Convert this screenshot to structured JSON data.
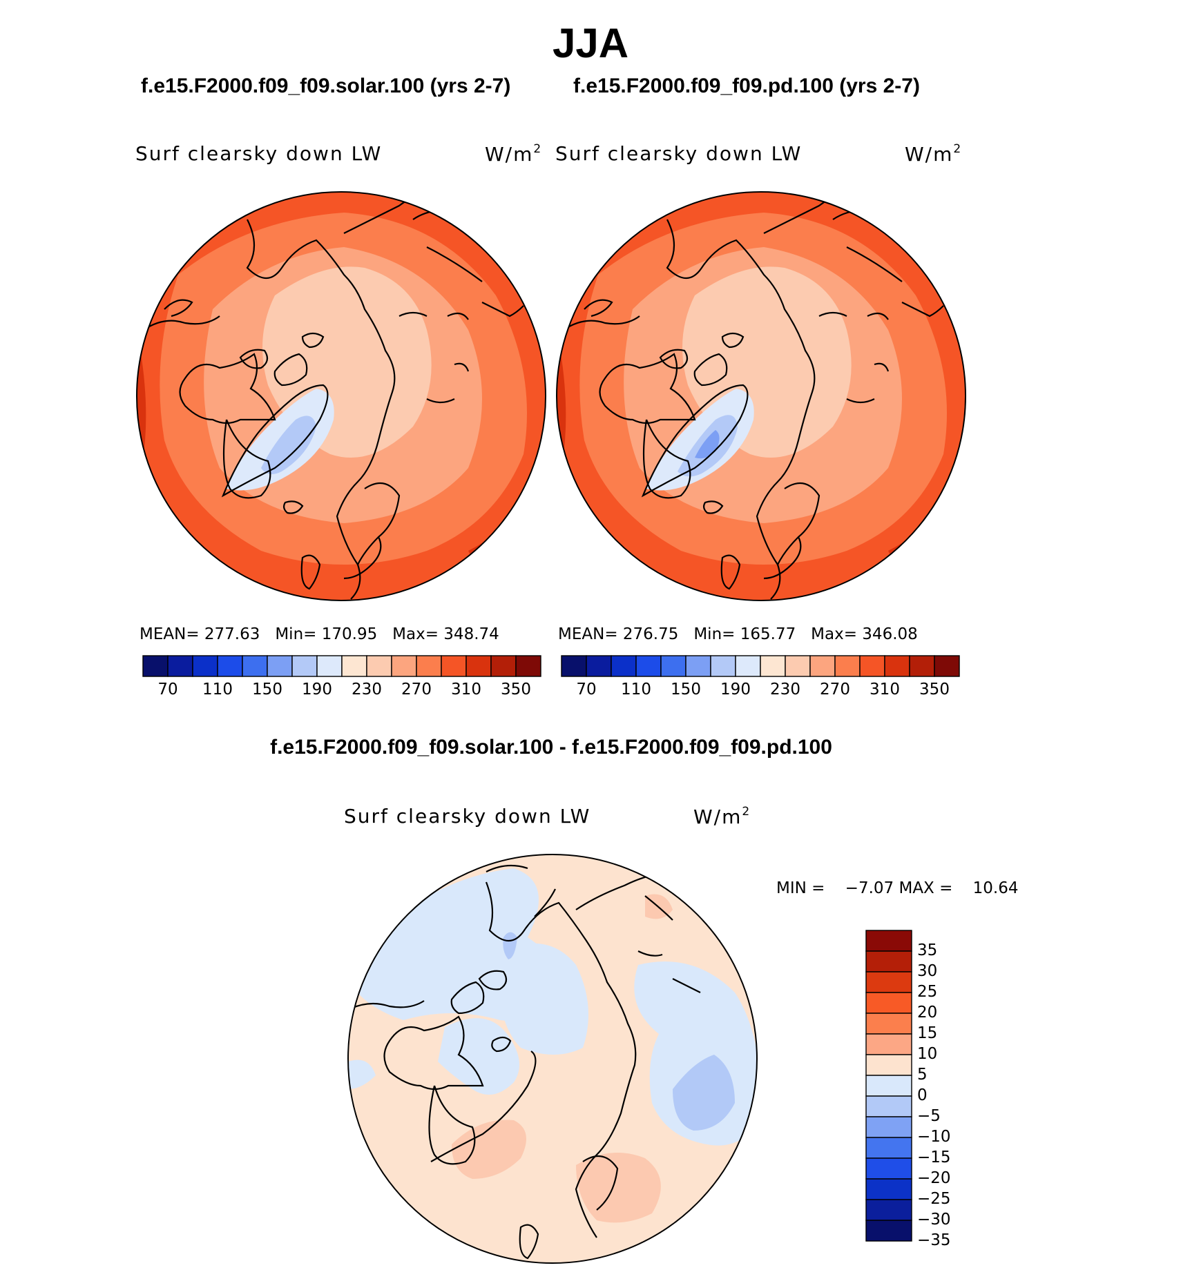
{
  "header": {
    "season": "JJA",
    "case_left": "f.e15.F2000.f09_f09.solar.100 (yrs 2-7)",
    "case_right": "f.e15.F2000.f09_f09.pd.100 (yrs 2-7)",
    "difference_title": "f.e15.F2000.f09_f09.solar.100 - f.e15.F2000.f09_f09.pd.100"
  },
  "panels": {
    "left": {
      "variable": "Surf clearsky down LW",
      "units_base": "W/m",
      "units_exp": "2",
      "mean": "277.63",
      "min": "170.95",
      "max": "348.74"
    },
    "right": {
      "variable": "Surf clearsky down LW",
      "units_base": "W/m",
      "units_exp": "2",
      "mean": "276.75",
      "min": "165.77",
      "max": "346.08"
    },
    "diff": {
      "variable": "Surf clearsky down LW",
      "units_base": "W/m",
      "units_exp": "2",
      "min_label": "MIN =",
      "min": "−7.07",
      "max_label": "MAX =",
      "max": "10.64"
    }
  },
  "stat_labels": {
    "mean": "MEAN=",
    "min": "Min=",
    "max": "Max="
  },
  "colorbar_main": {
    "colors": [
      "#08106b",
      "#0a1c9e",
      "#0b30c9",
      "#1c4ce9",
      "#3d6fef",
      "#7c9ff4",
      "#b3c9f7",
      "#dde9fb",
      "#fde6d2",
      "#fccbb0",
      "#fca57f",
      "#fb7e4d",
      "#f55526",
      "#d9330e",
      "#b31f08",
      "#7e0a06"
    ],
    "tick_labels": [
      "70",
      "110",
      "150",
      "190",
      "230",
      "270",
      "310",
      "350"
    ]
  },
  "colorbar_diff": {
    "colors": [
      "#8a0a06",
      "#b41f08",
      "#dc3a10",
      "#f85a26",
      "#fb7f4d",
      "#fca785",
      "#fde3cf",
      "#d9e8fb",
      "#b2c9f7",
      "#7fa2f4",
      "#4475ef",
      "#1f4ee8",
      "#0c32c7",
      "#0b1f9c",
      "#08106b"
    ],
    "tick_labels": [
      "35",
      "30",
      "25",
      "20",
      "15",
      "10",
      "5",
      "0",
      "−5",
      "−10",
      "−15",
      "−20",
      "−25",
      "−30",
      "−35"
    ]
  },
  "map_colors": {
    "outer": "#f55526",
    "mid": "#fb7e4d",
    "inner": "#fca57f",
    "pole": "#fccbb0",
    "ice_light": "#dde9fb",
    "ice_mid": "#b3c9f7",
    "ice_dark": "#7c9ff4",
    "edge_dark": "#d9330e",
    "diff_base": "#fde3cf",
    "diff_neg": "#d9e8fb",
    "diff_neg2": "#b2c9f7",
    "diff_pos": "#fcc9b0"
  }
}
